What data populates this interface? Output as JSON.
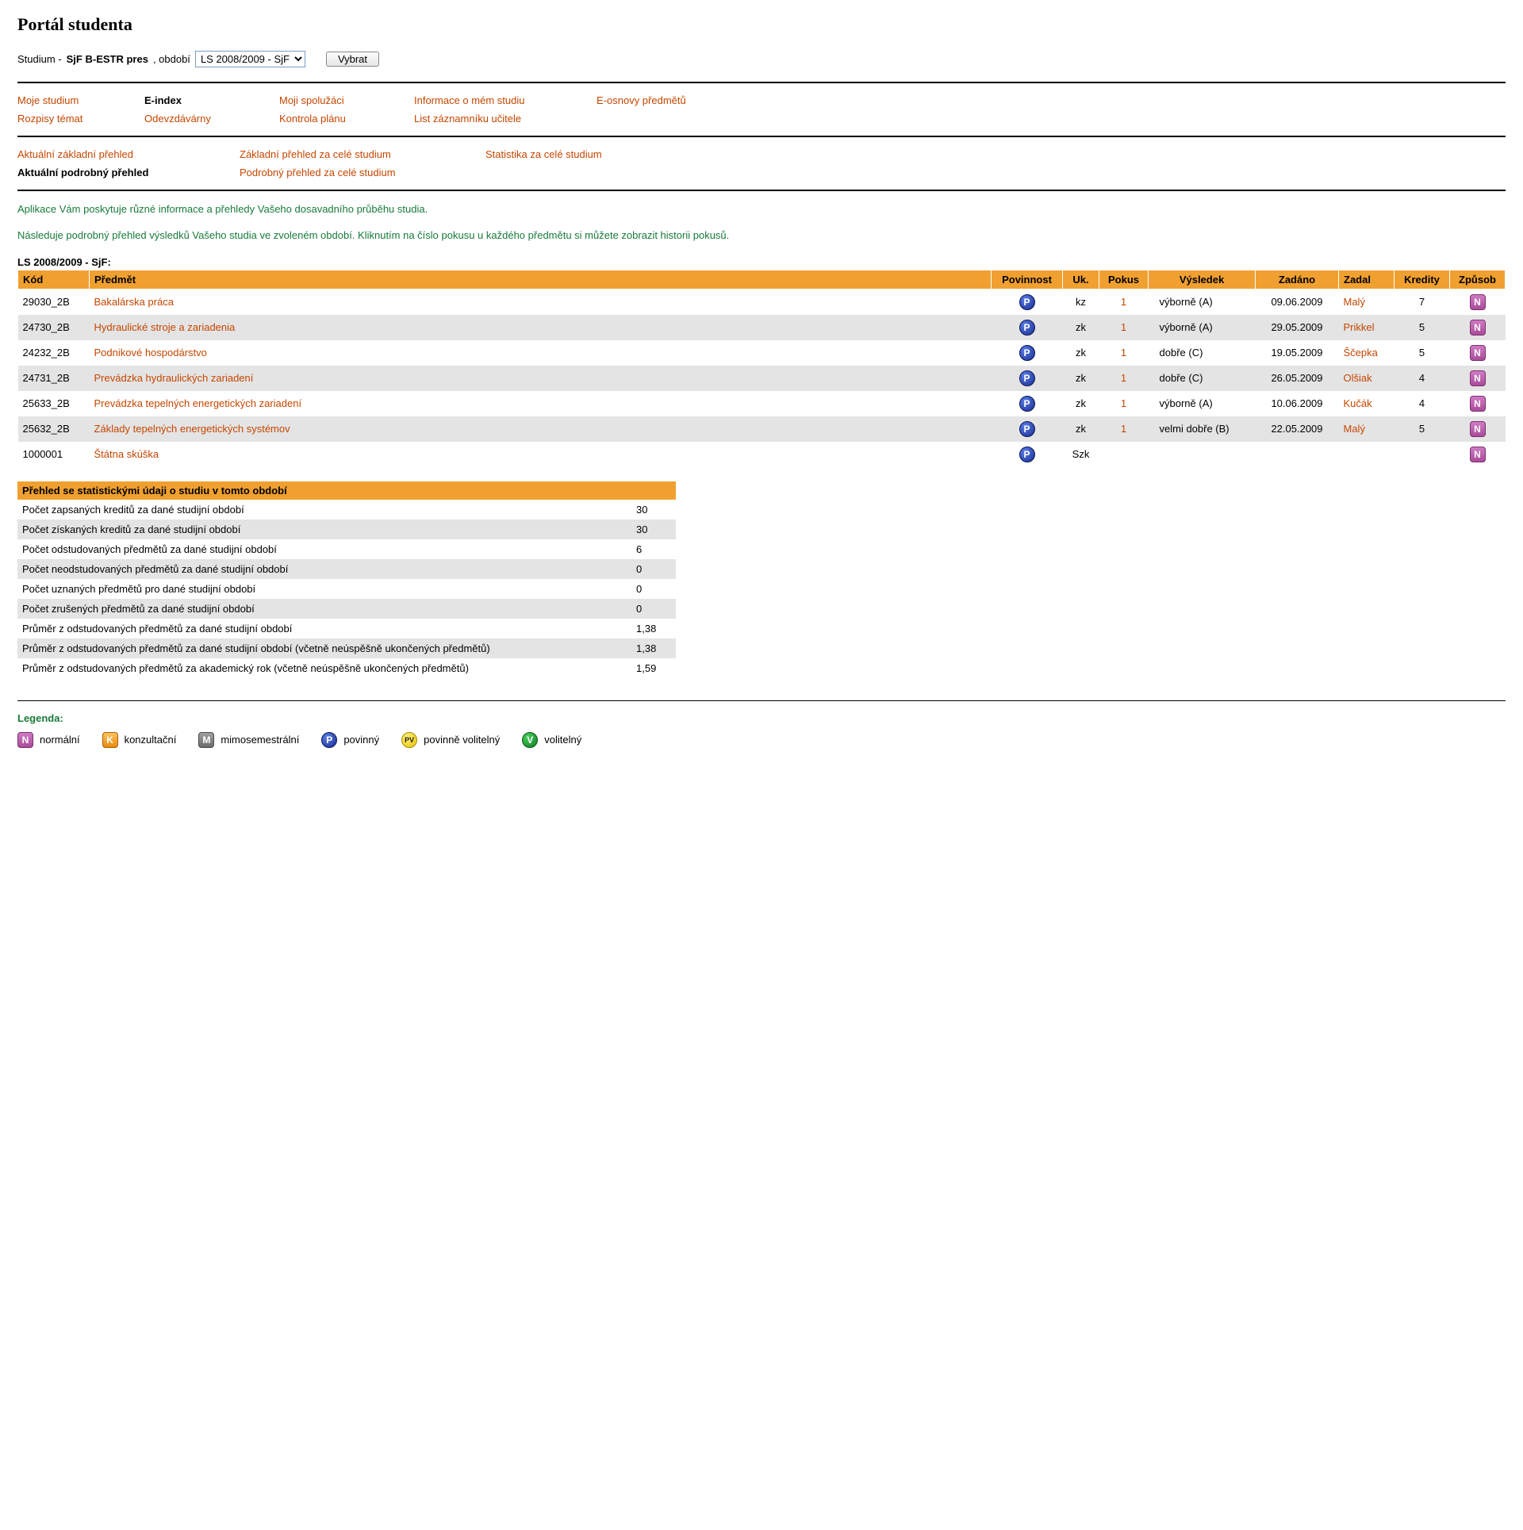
{
  "page": {
    "title": "Portál studenta",
    "studium_label": "Studium -",
    "studium_value": "SjF B-ESTR pres",
    "obdobi_label": ", období",
    "period_selected": "LS 2008/2009 - SjF",
    "select_button": "Vybrat"
  },
  "nav": [
    {
      "label": "Moje studium",
      "active": false,
      "r": 0,
      "c": 0
    },
    {
      "label": "E-index",
      "active": true,
      "r": 0,
      "c": 1
    },
    {
      "label": "Moji spolužáci",
      "active": false,
      "r": 0,
      "c": 2
    },
    {
      "label": "Informace o mém studiu",
      "active": false,
      "r": 0,
      "c": 3
    },
    {
      "label": "E-osnovy předmětů",
      "active": false,
      "r": 0,
      "c": 4
    },
    {
      "label": "Rozpisy témat",
      "active": false,
      "r": 1,
      "c": 0
    },
    {
      "label": "Odevzdávárny",
      "active": false,
      "r": 1,
      "c": 1
    },
    {
      "label": "Kontrola plánu",
      "active": false,
      "r": 1,
      "c": 2
    },
    {
      "label": "List záznamníku učitele",
      "active": false,
      "r": 1,
      "c": 3
    }
  ],
  "subnav": [
    {
      "label": "Aktuální základní přehled",
      "active": false,
      "r": 0,
      "c": 0
    },
    {
      "label": "Základní přehled za celé studium",
      "active": false,
      "r": 0,
      "c": 1
    },
    {
      "label": "Statistika za celé studium",
      "active": false,
      "r": 0,
      "c": 2
    },
    {
      "label": "Aktuální podrobný přehled",
      "active": true,
      "r": 1,
      "c": 0
    },
    {
      "label": "Podrobný přehled za celé studium",
      "active": false,
      "r": 1,
      "c": 1
    }
  ],
  "intro": {
    "p1": "Aplikace Vám poskytuje různé informace a přehledy Vašeho dosavadního průběhu studia.",
    "p2": "Následuje podrobný přehled výsledků Vašeho studia ve zvoleném období. Kliknutím na číslo pokusu u každého předmětu si můžete zobrazit historii pokusů."
  },
  "results": {
    "section_label": "LS 2008/2009 - SjF:",
    "headers": {
      "kod": "Kód",
      "predmet": "Předmět",
      "povinnost": "Povinnost",
      "uk": "Uk.",
      "pokus": "Pokus",
      "vysledek": "Výsledek",
      "zadano": "Zadáno",
      "zadal": "Zadal",
      "kredity": "Kredity",
      "zpusob": "Způsob"
    },
    "rows": [
      {
        "kod": "29030_2B",
        "predmet": "Bakalárska práca",
        "pov": "P",
        "uk": "kz",
        "pokus": "1",
        "vysledek": "výborně (A)",
        "zadano": "09.06.2009",
        "zadal": "Malý",
        "kredity": "7",
        "zpusob": "N"
      },
      {
        "kod": "24730_2B",
        "predmet": "Hydraulické stroje a zariadenia",
        "pov": "P",
        "uk": "zk",
        "pokus": "1",
        "vysledek": "výborně (A)",
        "zadano": "29.05.2009",
        "zadal": "Prikkel",
        "kredity": "5",
        "zpusob": "N"
      },
      {
        "kod": "24232_2B",
        "predmet": "Podnikové hospodárstvo",
        "pov": "P",
        "uk": "zk",
        "pokus": "1",
        "vysledek": "dobře (C)",
        "zadano": "19.05.2009",
        "zadal": "Ščepka",
        "kredity": "5",
        "zpusob": "N"
      },
      {
        "kod": "24731_2B",
        "predmet": "Prevádzka hydraulických zariadení",
        "pov": "P",
        "uk": "zk",
        "pokus": "1",
        "vysledek": "dobře (C)",
        "zadano": "26.05.2009",
        "zadal": "Olšiak",
        "kredity": "4",
        "zpusob": "N"
      },
      {
        "kod": "25633_2B",
        "predmet": "Prevádzka tepelných energetických zariadení",
        "pov": "P",
        "uk": "zk",
        "pokus": "1",
        "vysledek": "výborně (A)",
        "zadano": "10.06.2009",
        "zadal": "Kučák",
        "kredity": "4",
        "zpusob": "N"
      },
      {
        "kod": "25632_2B",
        "predmet": "Základy tepelných energetických systémov",
        "pov": "P",
        "uk": "zk",
        "pokus": "1",
        "vysledek": "velmi dobře (B)",
        "zadano": "22.05.2009",
        "zadal": "Malý",
        "kredity": "5",
        "zpusob": "N"
      },
      {
        "kod": "1000001",
        "predmet": "Štátna skúška",
        "pov": "P",
        "uk": "Szk",
        "pokus": "",
        "vysledek": "",
        "zadano": "",
        "zadal": "",
        "kredity": "",
        "zpusob": "N"
      }
    ]
  },
  "stats": {
    "header": "Přehled se statistickými údaji o studiu v tomto období",
    "rows": [
      {
        "label": "Počet zapsaných kreditů za dané studijní období",
        "val": "30"
      },
      {
        "label": "Počet získaných kreditů za dané studijní období",
        "val": "30"
      },
      {
        "label": "Počet odstudovaných předmětů za dané studijní období",
        "val": "6"
      },
      {
        "label": "Počet neodstudovaných předmětů za dané studijní období",
        "val": "0"
      },
      {
        "label": "Počet uznaných předmětů pro dané studijní období",
        "val": "0"
      },
      {
        "label": "Počet zrušených předmětů za dané studijní období",
        "val": "0"
      },
      {
        "label": "Průměr z odstudovaných předmětů za dané studijní období",
        "val": "1,38"
      },
      {
        "label": "Průměr z odstudovaných předmětů za dané studijní období (včetně neúspěšně ukončených předmětů)",
        "val": "1,38"
      },
      {
        "label": "Průměr z odstudovaných předmětů za akademický rok (včetně neúspěšně ukončených předmětů)",
        "val": "1,59"
      }
    ]
  },
  "legend": {
    "title": "Legenda:",
    "items": [
      {
        "badge": "N",
        "cls": "badge-N-sq",
        "label": "normální"
      },
      {
        "badge": "K",
        "cls": "badge-K-sq",
        "label": "konzultační"
      },
      {
        "badge": "M",
        "cls": "badge-M-sq",
        "label": "mimosemestrální"
      },
      {
        "badge": "P",
        "cls": "badge badge-P",
        "label": "povinný"
      },
      {
        "badge": "PV",
        "cls": "badge-PV",
        "label": "povinně volitelný"
      },
      {
        "badge": "V",
        "cls": "badge-V",
        "label": "volitelný"
      }
    ]
  },
  "colors": {
    "header_bg": "#f0a030",
    "row_even": "#e4e4e4",
    "link": "#c54600",
    "intro_text": "#187a3a"
  }
}
